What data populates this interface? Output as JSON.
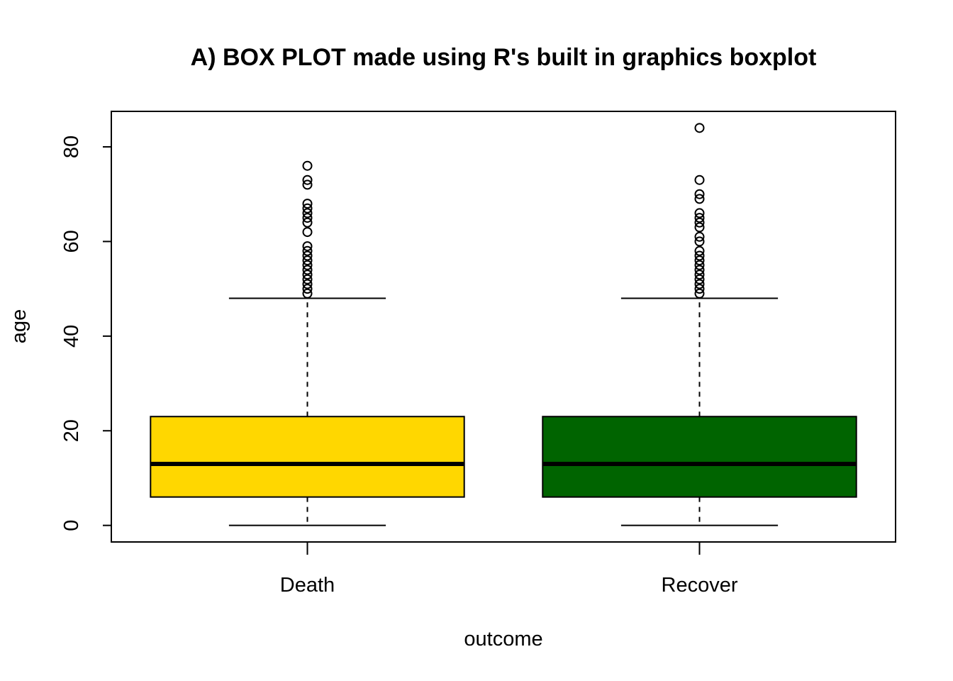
{
  "chart_data": {
    "type": "box",
    "title": "A) BOX PLOT made using R's built in graphics boxplot",
    "xlabel": "outcome",
    "ylabel": "age",
    "ylim": [
      -3.5,
      87.5
    ],
    "yticks": [
      0,
      20,
      40,
      60,
      80
    ],
    "ytick_labels": [
      "0",
      "20",
      "40",
      "60",
      "80"
    ],
    "grid": false,
    "categories": [
      "Death",
      "Recover"
    ],
    "boxes": [
      {
        "category": "Death",
        "color": "#FFD700",
        "whisker_low": 0,
        "q1": 6,
        "median": 13,
        "q3": 23,
        "whisker_high": 48,
        "outliers": [
          49,
          50,
          51,
          52,
          53,
          54,
          55,
          56,
          57,
          58,
          59,
          62,
          64,
          65,
          66,
          67,
          68,
          72,
          73,
          76
        ]
      },
      {
        "category": "Recover",
        "color": "#006400",
        "whisker_low": 0,
        "q1": 6,
        "median": 13,
        "q3": 23,
        "whisker_high": 48,
        "outliers": [
          49,
          50,
          51,
          52,
          53,
          54,
          55,
          56,
          57,
          58,
          60,
          61,
          63,
          64,
          65,
          66,
          69,
          70,
          73,
          84
        ]
      }
    ]
  }
}
